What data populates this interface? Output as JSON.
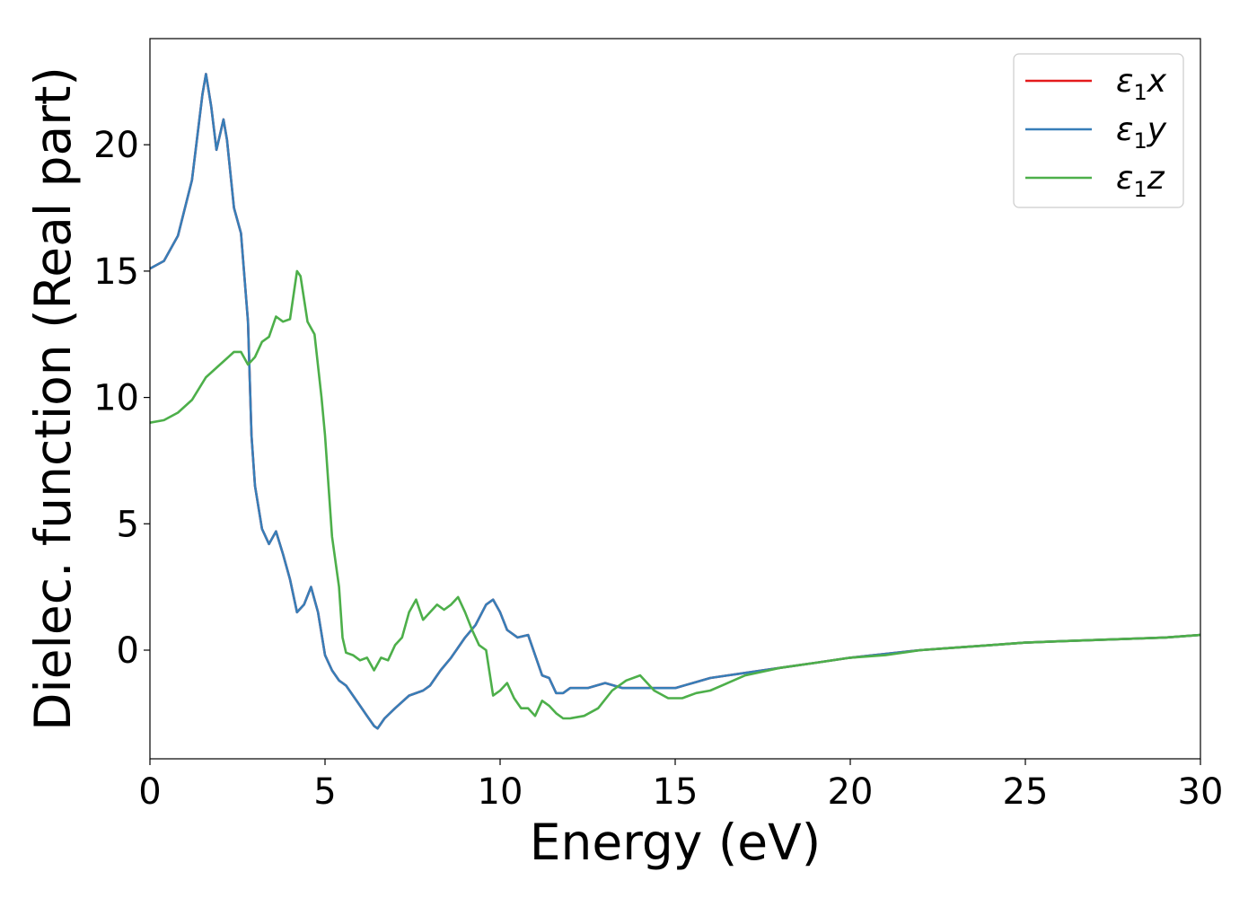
{
  "chart_data": {
    "type": "line",
    "xlabel": "Energy (eV)",
    "ylabel": "Dielec. function (Real part)",
    "xlim": [
      0,
      30
    ],
    "ylim": [
      -4.3,
      24.2
    ],
    "xticks": [
      0,
      5,
      10,
      15,
      20,
      25,
      30
    ],
    "yticks": [
      0,
      5,
      10,
      15,
      20
    ],
    "grid": false,
    "legend_position": "top-right",
    "colors": {
      "x": "#e41a1c",
      "y": "#377eb8",
      "z": "#4daf4a"
    },
    "series": [
      {
        "key": "x",
        "symbol": "ε",
        "subscript": "1",
        "component": "x",
        "color": "#e41a1c",
        "points": [
          [
            0,
            15.1
          ],
          [
            0.4,
            15.4
          ],
          [
            0.8,
            16.4
          ],
          [
            1.2,
            18.6
          ],
          [
            1.5,
            22.0
          ],
          [
            1.6,
            22.8
          ],
          [
            1.75,
            21.5
          ],
          [
            1.9,
            19.8
          ],
          [
            2.0,
            20.4
          ],
          [
            2.1,
            21.0
          ],
          [
            2.2,
            20.2
          ],
          [
            2.4,
            17.5
          ],
          [
            2.6,
            16.5
          ],
          [
            2.8,
            13.0
          ],
          [
            2.9,
            8.5
          ],
          [
            3.0,
            6.5
          ],
          [
            3.2,
            4.8
          ],
          [
            3.4,
            4.2
          ],
          [
            3.6,
            4.7
          ],
          [
            3.8,
            3.8
          ],
          [
            4.0,
            2.8
          ],
          [
            4.2,
            1.5
          ],
          [
            4.4,
            1.8
          ],
          [
            4.6,
            2.5
          ],
          [
            4.8,
            1.5
          ],
          [
            5.0,
            -0.2
          ],
          [
            5.2,
            -0.8
          ],
          [
            5.4,
            -1.2
          ],
          [
            5.6,
            -1.4
          ],
          [
            5.8,
            -1.8
          ],
          [
            6.0,
            -2.2
          ],
          [
            6.2,
            -2.6
          ],
          [
            6.4,
            -3.0
          ],
          [
            6.5,
            -3.1
          ],
          [
            6.7,
            -2.7
          ],
          [
            7.0,
            -2.3
          ],
          [
            7.4,
            -1.8
          ],
          [
            7.8,
            -1.6
          ],
          [
            8.0,
            -1.4
          ],
          [
            8.3,
            -0.8
          ],
          [
            8.6,
            -0.3
          ],
          [
            9.0,
            0.5
          ],
          [
            9.3,
            1.0
          ],
          [
            9.6,
            1.8
          ],
          [
            9.8,
            2.0
          ],
          [
            10.0,
            1.5
          ],
          [
            10.2,
            0.8
          ],
          [
            10.5,
            0.5
          ],
          [
            10.8,
            0.6
          ],
          [
            11.0,
            -0.2
          ],
          [
            11.2,
            -1.0
          ],
          [
            11.4,
            -1.1
          ],
          [
            11.6,
            -1.7
          ],
          [
            11.8,
            -1.7
          ],
          [
            12.0,
            -1.5
          ],
          [
            12.5,
            -1.5
          ],
          [
            13.0,
            -1.3
          ],
          [
            13.5,
            -1.5
          ],
          [
            14.0,
            -1.5
          ],
          [
            14.5,
            -1.5
          ],
          [
            15.0,
            -1.5
          ],
          [
            15.5,
            -1.3
          ],
          [
            16.0,
            -1.1
          ],
          [
            16.5,
            -1.0
          ],
          [
            17.0,
            -0.9
          ],
          [
            18.0,
            -0.7
          ],
          [
            19.0,
            -0.5
          ],
          [
            20.0,
            -0.3
          ],
          [
            21.0,
            -0.15
          ],
          [
            22.0,
            0.0
          ],
          [
            23.0,
            0.1
          ],
          [
            24.0,
            0.2
          ],
          [
            25.0,
            0.3
          ],
          [
            26.0,
            0.35
          ],
          [
            27.0,
            0.4
          ],
          [
            28.0,
            0.45
          ],
          [
            29.0,
            0.5
          ],
          [
            30.0,
            0.6
          ]
        ]
      },
      {
        "key": "y",
        "symbol": "ε",
        "subscript": "1",
        "component": "y",
        "color": "#377eb8",
        "points": [
          [
            0,
            15.1
          ],
          [
            0.4,
            15.4
          ],
          [
            0.8,
            16.4
          ],
          [
            1.2,
            18.6
          ],
          [
            1.5,
            22.0
          ],
          [
            1.6,
            22.8
          ],
          [
            1.75,
            21.5
          ],
          [
            1.9,
            19.8
          ],
          [
            2.0,
            20.4
          ],
          [
            2.1,
            21.0
          ],
          [
            2.2,
            20.2
          ],
          [
            2.4,
            17.5
          ],
          [
            2.6,
            16.5
          ],
          [
            2.8,
            13.0
          ],
          [
            2.9,
            8.5
          ],
          [
            3.0,
            6.5
          ],
          [
            3.2,
            4.8
          ],
          [
            3.4,
            4.2
          ],
          [
            3.6,
            4.7
          ],
          [
            3.8,
            3.8
          ],
          [
            4.0,
            2.8
          ],
          [
            4.2,
            1.5
          ],
          [
            4.4,
            1.8
          ],
          [
            4.6,
            2.5
          ],
          [
            4.8,
            1.5
          ],
          [
            5.0,
            -0.2
          ],
          [
            5.2,
            -0.8
          ],
          [
            5.4,
            -1.2
          ],
          [
            5.6,
            -1.4
          ],
          [
            5.8,
            -1.8
          ],
          [
            6.0,
            -2.2
          ],
          [
            6.2,
            -2.6
          ],
          [
            6.4,
            -3.0
          ],
          [
            6.5,
            -3.1
          ],
          [
            6.7,
            -2.7
          ],
          [
            7.0,
            -2.3
          ],
          [
            7.4,
            -1.8
          ],
          [
            7.8,
            -1.6
          ],
          [
            8.0,
            -1.4
          ],
          [
            8.3,
            -0.8
          ],
          [
            8.6,
            -0.3
          ],
          [
            9.0,
            0.5
          ],
          [
            9.3,
            1.0
          ],
          [
            9.6,
            1.8
          ],
          [
            9.8,
            2.0
          ],
          [
            10.0,
            1.5
          ],
          [
            10.2,
            0.8
          ],
          [
            10.5,
            0.5
          ],
          [
            10.8,
            0.6
          ],
          [
            11.0,
            -0.2
          ],
          [
            11.2,
            -1.0
          ],
          [
            11.4,
            -1.1
          ],
          [
            11.6,
            -1.7
          ],
          [
            11.8,
            -1.7
          ],
          [
            12.0,
            -1.5
          ],
          [
            12.5,
            -1.5
          ],
          [
            13.0,
            -1.3
          ],
          [
            13.5,
            -1.5
          ],
          [
            14.0,
            -1.5
          ],
          [
            14.5,
            -1.5
          ],
          [
            15.0,
            -1.5
          ],
          [
            15.5,
            -1.3
          ],
          [
            16.0,
            -1.1
          ],
          [
            16.5,
            -1.0
          ],
          [
            17.0,
            -0.9
          ],
          [
            18.0,
            -0.7
          ],
          [
            19.0,
            -0.5
          ],
          [
            20.0,
            -0.3
          ],
          [
            21.0,
            -0.15
          ],
          [
            22.0,
            0.0
          ],
          [
            23.0,
            0.1
          ],
          [
            24.0,
            0.2
          ],
          [
            25.0,
            0.3
          ],
          [
            26.0,
            0.35
          ],
          [
            27.0,
            0.4
          ],
          [
            28.0,
            0.45
          ],
          [
            29.0,
            0.5
          ],
          [
            30.0,
            0.6
          ]
        ]
      },
      {
        "key": "z",
        "symbol": "ε",
        "subscript": "1",
        "component": "z",
        "color": "#4daf4a",
        "points": [
          [
            0,
            9.0
          ],
          [
            0.4,
            9.1
          ],
          [
            0.8,
            9.4
          ],
          [
            1.2,
            9.9
          ],
          [
            1.6,
            10.8
          ],
          [
            2.0,
            11.3
          ],
          [
            2.4,
            11.8
          ],
          [
            2.6,
            11.8
          ],
          [
            2.8,
            11.3
          ],
          [
            3.0,
            11.6
          ],
          [
            3.2,
            12.2
          ],
          [
            3.4,
            12.4
          ],
          [
            3.6,
            13.2
          ],
          [
            3.8,
            13.0
          ],
          [
            4.0,
            13.1
          ],
          [
            4.2,
            15.0
          ],
          [
            4.3,
            14.8
          ],
          [
            4.5,
            13.0
          ],
          [
            4.7,
            12.5
          ],
          [
            4.9,
            10.0
          ],
          [
            5.0,
            8.5
          ],
          [
            5.1,
            6.5
          ],
          [
            5.2,
            4.5
          ],
          [
            5.4,
            2.5
          ],
          [
            5.5,
            0.5
          ],
          [
            5.6,
            -0.1
          ],
          [
            5.8,
            -0.2
          ],
          [
            6.0,
            -0.4
          ],
          [
            6.2,
            -0.3
          ],
          [
            6.4,
            -0.8
          ],
          [
            6.6,
            -0.3
          ],
          [
            6.8,
            -0.4
          ],
          [
            7.0,
            0.2
          ],
          [
            7.2,
            0.5
          ],
          [
            7.4,
            1.5
          ],
          [
            7.6,
            2.0
          ],
          [
            7.8,
            1.2
          ],
          [
            8.0,
            1.5
          ],
          [
            8.2,
            1.8
          ],
          [
            8.4,
            1.6
          ],
          [
            8.6,
            1.8
          ],
          [
            8.8,
            2.1
          ],
          [
            9.0,
            1.5
          ],
          [
            9.2,
            0.8
          ],
          [
            9.4,
            0.2
          ],
          [
            9.6,
            0.0
          ],
          [
            9.8,
            -1.8
          ],
          [
            10.0,
            -1.6
          ],
          [
            10.2,
            -1.3
          ],
          [
            10.4,
            -1.9
          ],
          [
            10.6,
            -2.3
          ],
          [
            10.8,
            -2.3
          ],
          [
            11.0,
            -2.6
          ],
          [
            11.2,
            -2.0
          ],
          [
            11.4,
            -2.2
          ],
          [
            11.6,
            -2.5
          ],
          [
            11.8,
            -2.7
          ],
          [
            12.0,
            -2.7
          ],
          [
            12.4,
            -2.6
          ],
          [
            12.8,
            -2.3
          ],
          [
            13.2,
            -1.6
          ],
          [
            13.6,
            -1.2
          ],
          [
            14.0,
            -1.0
          ],
          [
            14.4,
            -1.6
          ],
          [
            14.8,
            -1.9
          ],
          [
            15.2,
            -1.9
          ],
          [
            15.6,
            -1.7
          ],
          [
            16.0,
            -1.6
          ],
          [
            16.5,
            -1.3
          ],
          [
            17.0,
            -1.0
          ],
          [
            18.0,
            -0.7
          ],
          [
            19.0,
            -0.5
          ],
          [
            20.0,
            -0.3
          ],
          [
            21.0,
            -0.2
          ],
          [
            22.0,
            0.0
          ],
          [
            23.0,
            0.1
          ],
          [
            24.0,
            0.2
          ],
          [
            25.0,
            0.3
          ],
          [
            26.0,
            0.35
          ],
          [
            27.0,
            0.4
          ],
          [
            28.0,
            0.45
          ],
          [
            29.0,
            0.5
          ],
          [
            30.0,
            0.6
          ]
        ]
      }
    ]
  }
}
